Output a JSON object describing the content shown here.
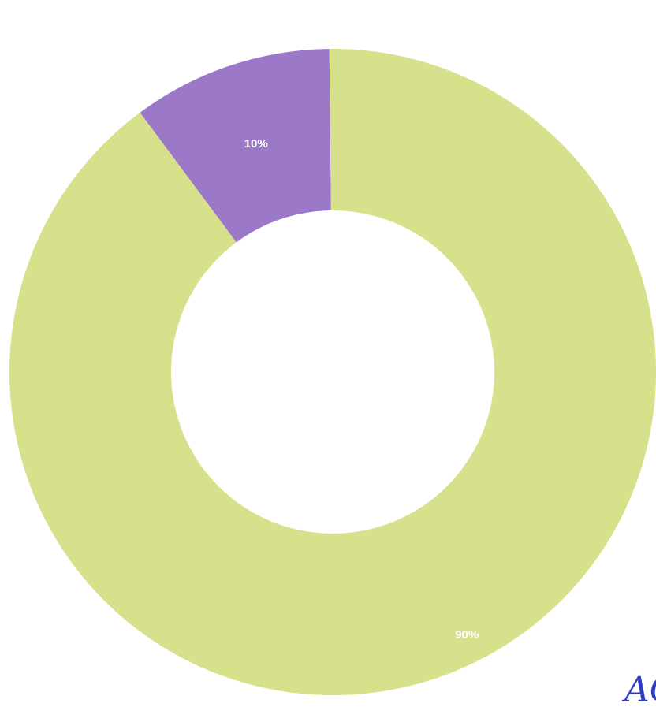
{
  "chart_data": {
    "type": "pie",
    "donut": true,
    "title": "",
    "slices": [
      {
        "value": 10,
        "label": "10%",
        "color": "#9c78c9"
      },
      {
        "value": 90,
        "label": "90%",
        "color": "#d7e08a"
      }
    ],
    "legend": "none"
  },
  "annotation": {
    "handwriting": "AG"
  },
  "colors": {
    "background": "#ffffff",
    "hole": "#ffffff",
    "label_text": "#ffffff",
    "ink": "#2c3fc4"
  }
}
